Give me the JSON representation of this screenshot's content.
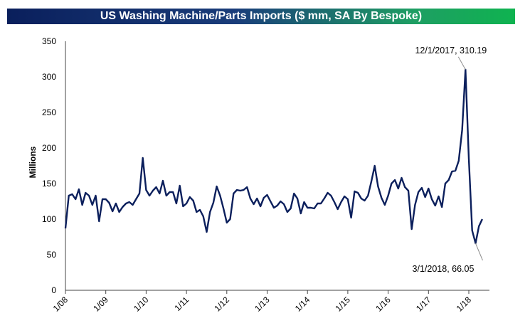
{
  "chart_data": {
    "type": "line",
    "title": "US Washing Machine/Parts Imports ($ mm, SA By Bespoke)",
    "ylabel": "Millions",
    "ylim": [
      0,
      350
    ],
    "yticks": [
      0,
      50,
      100,
      150,
      200,
      250,
      300,
      350
    ],
    "xticks": [
      "1/08",
      "1/09",
      "1/10",
      "1/11",
      "1/12",
      "1/13",
      "1/14",
      "1/15",
      "1/16",
      "1/17",
      "1/18"
    ],
    "line_color": "#0b1f5c",
    "series": [
      {
        "start": "1/2008",
        "values": [
          87,
          133,
          135,
          128,
          142,
          120,
          137,
          133,
          120,
          133,
          97,
          128,
          128,
          123,
          111,
          122,
          110,
          117,
          122,
          124,
          120,
          128,
          136,
          186,
          141,
          133,
          140,
          145,
          136,
          154,
          133,
          138,
          138,
          122,
          147,
          118,
          122,
          131,
          126,
          110,
          113,
          104,
          82,
          110,
          123,
          146,
          133,
          115,
          95,
          100,
          136,
          141,
          140,
          141,
          145,
          129,
          121,
          129,
          118,
          130,
          134,
          125,
          116,
          119,
          125,
          121,
          110,
          115,
          136,
          129,
          108,
          124,
          116,
          116,
          115,
          122,
          122,
          129,
          137,
          133,
          124,
          114,
          124,
          132,
          128,
          102,
          139,
          137,
          129,
          126,
          133,
          153,
          175,
          146,
          130,
          120,
          133,
          150,
          155,
          143,
          158,
          145,
          140,
          86,
          120,
          138,
          144,
          131,
          143,
          128,
          119,
          132,
          117,
          150,
          155,
          167,
          168,
          182,
          225,
          310.19,
          185,
          84,
          66.05,
          90,
          100
        ]
      }
    ],
    "annotations": [
      {
        "date": "12/1/2017",
        "value": 310.19,
        "label": "12/1/2017, 310.19"
      },
      {
        "date": "3/1/2018",
        "value": 66.05,
        "label": "3/1/2018, 66.05"
      }
    ]
  }
}
